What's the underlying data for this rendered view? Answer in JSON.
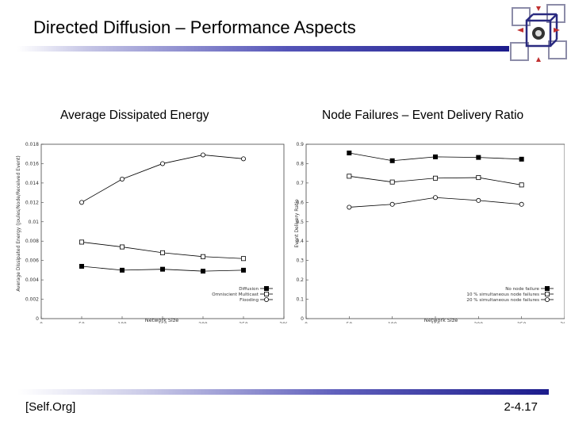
{
  "slide": {
    "title": "Directed Diffusion – Performance Aspects",
    "footer_left": "[Self.Org]",
    "footer_right": "2-4.17"
  },
  "colors": {
    "accent_dark": "#1c1c8c",
    "accent_mid": "#5454b8"
  },
  "chart_data": [
    {
      "type": "line",
      "title": "Average Dissipated Energy",
      "xlabel": "Network Size",
      "ylabel": "Average Dissipated Energy (Joules/Node/Received Event)",
      "xlim": [
        0,
        300
      ],
      "ylim": [
        0,
        0.018
      ],
      "xticks": [
        "0",
        "50",
        "100",
        "150",
        "200",
        "250",
        "300"
      ],
      "yticks": [
        "0",
        "0.002",
        "0.004",
        "0.006",
        "0.008",
        "0.01",
        "0.012",
        "0.014",
        "0.016",
        "0.018"
      ],
      "x": [
        50,
        100,
        150,
        200,
        250
      ],
      "legend_position": "bottom-right",
      "series": [
        {
          "name": "Diffusion",
          "marker": "filled-square",
          "values": [
            0.0054,
            0.005,
            0.0051,
            0.0049,
            0.005
          ]
        },
        {
          "name": "Omniscient Multicast",
          "marker": "open-square",
          "values": [
            0.0079,
            0.0074,
            0.0068,
            0.0064,
            0.0062
          ]
        },
        {
          "name": "Flooding",
          "marker": "open-circle",
          "values": [
            0.012,
            0.0144,
            0.016,
            0.0169,
            0.0165
          ]
        }
      ]
    },
    {
      "type": "line",
      "title": "Node Failures – Event Delivery Ratio",
      "xlabel": "Network Size",
      "ylabel": "Event Delivery Ratio",
      "xlim": [
        0,
        300
      ],
      "ylim": [
        0,
        0.9
      ],
      "xticks": [
        "0",
        "50",
        "100",
        "150",
        "200",
        "250",
        "300"
      ],
      "yticks": [
        "0",
        "0.1",
        "0.2",
        "0.3",
        "0.4",
        "0.5",
        "0.6",
        "0.7",
        "0.8",
        "0.9"
      ],
      "x": [
        50,
        100,
        150,
        200,
        250
      ],
      "legend_position": "bottom-right",
      "series": [
        {
          "name": "No node failure",
          "marker": "filled-square",
          "values": [
            0.855,
            0.815,
            0.835,
            0.832,
            0.823
          ]
        },
        {
          "name": "10 % simultaneous node failures",
          "marker": "open-square",
          "values": [
            0.735,
            0.705,
            0.725,
            0.728,
            0.69
          ]
        },
        {
          "name": "20 % simultaneous node failures",
          "marker": "open-circle",
          "values": [
            0.575,
            0.59,
            0.625,
            0.61,
            0.59
          ]
        }
      ]
    }
  ]
}
